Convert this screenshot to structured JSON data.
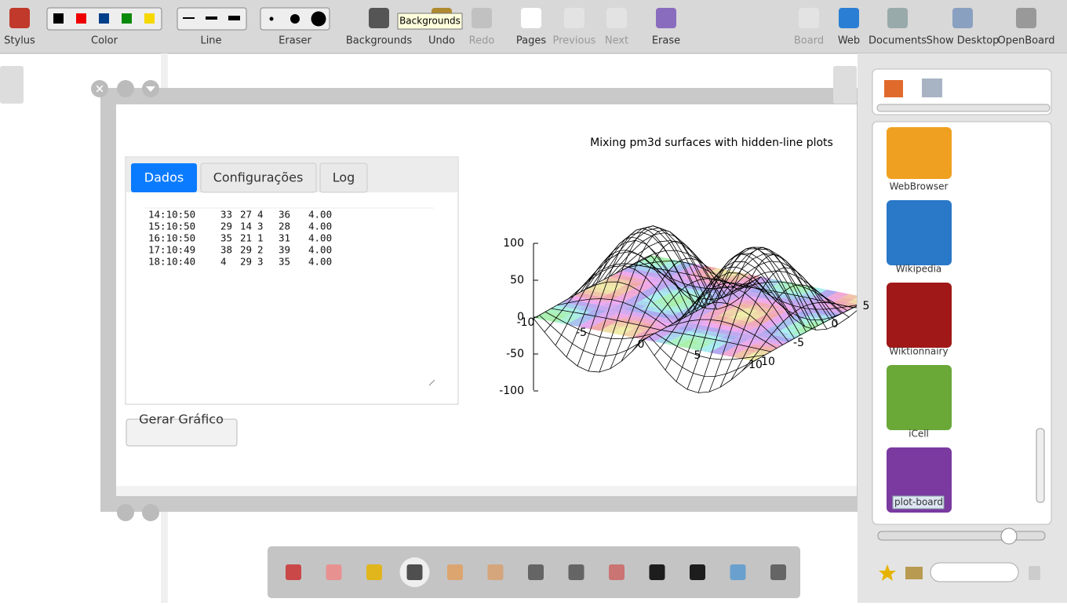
{
  "toolbar": {
    "items": [
      "Stylus",
      "Color",
      "Line",
      "Eraser",
      "Backgrounds",
      "Undo",
      "Redo",
      "Pages",
      "Previous",
      "Next",
      "Erase",
      "Board",
      "Web",
      "Documents",
      "Show Desktop",
      "OpenBoard"
    ],
    "tooltip": "Backgrounds"
  },
  "widget": {
    "tabs": [
      "Dados",
      "Configurações",
      "Log"
    ],
    "rows": [
      [
        "14:10:50",
        "33",
        "27",
        "4",
        "36",
        "4.00"
      ],
      [
        "15:10:50",
        "29",
        "14",
        "3",
        "28",
        "4.00"
      ],
      [
        "16:10:50",
        "35",
        "21",
        "1",
        "31",
        "4.00"
      ],
      [
        "17:10:49",
        "38",
        "29",
        "2",
        "39",
        "4.00"
      ],
      [
        "18:10:40",
        "4",
        "29",
        "3",
        "35",
        "4.00"
      ]
    ],
    "button": "Gerar Gráfico",
    "plot": {
      "title": "Mixing pm3d surfaces with hidden-line plots",
      "z_labels": [
        "100",
        "50",
        "0",
        "-50",
        "-100"
      ],
      "x_labels": [
        "-10",
        "-5",
        "0",
        "5",
        "10"
      ],
      "y_labels": [
        "10",
        "-5",
        "0",
        "5"
      ]
    }
  },
  "library": {
    "items": [
      "WebBrowser",
      "Wikipedia",
      "Wiktionnairy",
      "iCell",
      "plot-board"
    ]
  }
}
